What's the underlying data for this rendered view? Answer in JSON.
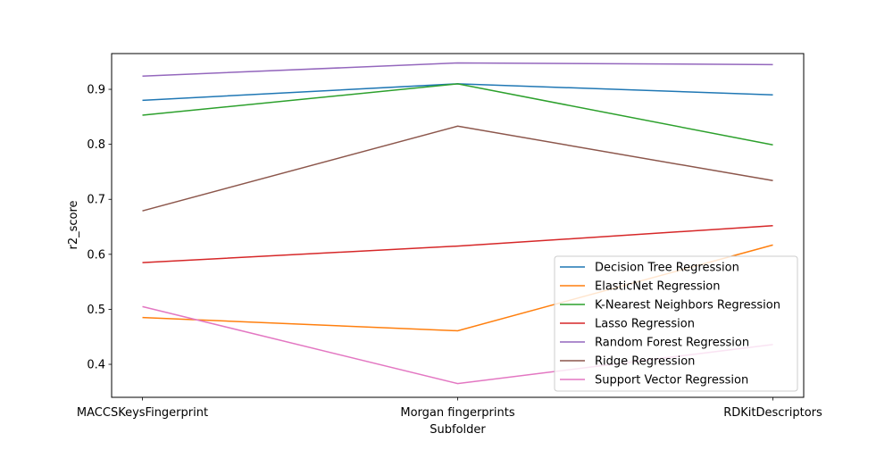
{
  "chart_data": {
    "type": "line",
    "title": "",
    "xlabel": "Subfolder",
    "ylabel": "r2_score",
    "categories": [
      "MACCSKeysFingerprint",
      "Morgan fingerprints",
      "RDKitDescriptors"
    ],
    "ylim": [
      0.34,
      0.965
    ],
    "yticks": [
      0.4,
      0.5,
      0.6,
      0.7,
      0.8,
      0.9
    ],
    "ytick_labels": [
      "0.4",
      "0.5",
      "0.6",
      "0.7",
      "0.8",
      "0.9"
    ],
    "grid": false,
    "legend_position": "lower right",
    "series": [
      {
        "name": "Decision Tree Regression",
        "color": "#1f77b4",
        "values": [
          0.88,
          0.91,
          0.89
        ]
      },
      {
        "name": "ElasticNet Regression",
        "color": "#ff7f0e",
        "values": [
          0.485,
          0.461,
          0.617
        ]
      },
      {
        "name": "K-Nearest Neighbors Regression",
        "color": "#2ca02c",
        "values": [
          0.853,
          0.91,
          0.799
        ]
      },
      {
        "name": "Lasso Regression",
        "color": "#d62728",
        "values": [
          0.585,
          0.615,
          0.652
        ]
      },
      {
        "name": "Random Forest Regression",
        "color": "#9467bd",
        "values": [
          0.924,
          0.948,
          0.945
        ]
      },
      {
        "name": "Ridge Regression",
        "color": "#8c564b",
        "values": [
          0.679,
          0.833,
          0.734
        ]
      },
      {
        "name": "Support Vector Regression",
        "color": "#e377c2",
        "values": [
          0.505,
          0.365,
          0.436
        ]
      }
    ]
  }
}
